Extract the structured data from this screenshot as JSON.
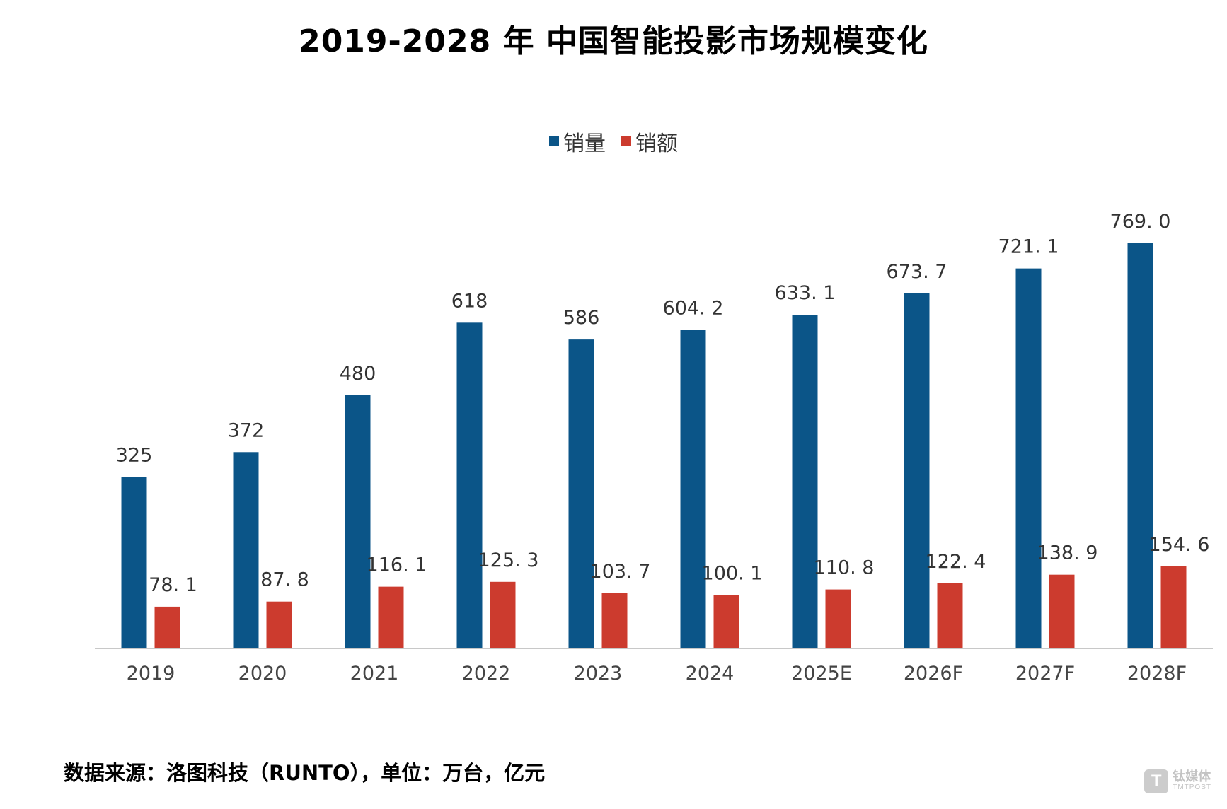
{
  "page": {
    "title": "2019-2028 年 中国智能投影市场规模变化",
    "source_note": "数据来源：洛图科技（RUNTO），单位：万台，亿元",
    "watermark": {
      "text_cn": "钛媒体",
      "text_en": "TMTPOST",
      "logo_letter": "T"
    }
  },
  "chart_data": {
    "type": "bar",
    "title": "2019-2028 年 中国智能投影市场规模变化",
    "categories": [
      "2019",
      "2020",
      "2021",
      "2022",
      "2023",
      "2024",
      "2025E",
      "2026F",
      "2027F",
      "2028F"
    ],
    "series": [
      {
        "name": "销量",
        "color": "#0b5588",
        "values": [
          325,
          372,
          480,
          618,
          586,
          604.2,
          633.1,
          673.7,
          721.1,
          769.0
        ],
        "labels": [
          "325",
          "372",
          "480",
          "618",
          "586",
          "604. 2",
          "633. 1",
          "673. 7",
          "721. 1",
          "769. 0"
        ]
      },
      {
        "name": "销额",
        "color": "#cc3b2e",
        "values": [
          78.1,
          87.8,
          116.1,
          125.3,
          103.7,
          100.1,
          110.8,
          122.4,
          138.9,
          154.6
        ],
        "labels": [
          "78. 1",
          "87. 8",
          "116. 1",
          "125. 3",
          "103. 7",
          "100. 1",
          "110. 8",
          "122. 4",
          "138. 9",
          "154. 6"
        ]
      }
    ],
    "ylim": [
      0,
      900
    ],
    "legend_position": "top-center",
    "grid": false
  }
}
